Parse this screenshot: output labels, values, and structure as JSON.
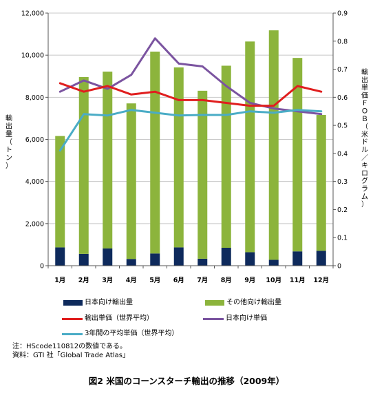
{
  "chart_data": {
    "type": "bar+line",
    "categories": [
      "1月",
      "2月",
      "3月",
      "4月",
      "5月",
      "6月",
      "7月",
      "8月",
      "9月",
      "10月",
      "11月",
      "12月"
    ],
    "left_axis": {
      "label": "輸出量（トン）",
      "ylim": [
        0,
        12000
      ],
      "ticks": [
        "0",
        "2,000",
        "4,000",
        "6,000",
        "8,000",
        "10,000",
        "12,000"
      ]
    },
    "right_axis": {
      "label": "輸出単価ＦＯＢ（米ドル／キログラム）",
      "ylim": [
        0,
        0.9
      ],
      "ticks": [
        "0",
        "0.1",
        "0.2",
        "0.3",
        "0.4",
        "0.5",
        "0.6",
        "0.7",
        "0.8",
        "0.9"
      ]
    },
    "series": [
      {
        "name": "日本向け輸出量",
        "type": "stacked-bar",
        "axis": "left",
        "color": "#0e2a5c",
        "values": [
          870,
          560,
          820,
          320,
          580,
          870,
          330,
          850,
          640,
          280,
          680,
          710
        ]
      },
      {
        "name": "その他向け輸出量",
        "type": "stacked-bar",
        "axis": "left",
        "color": "#8cb43c",
        "values": [
          5290,
          8400,
          8400,
          7390,
          9590,
          8550,
          7980,
          8650,
          10010,
          10900,
          9190,
          6450
        ]
      },
      {
        "name": "輸出単価（世界平均）",
        "type": "line",
        "axis": "right",
        "color": "#e01e1e",
        "values": [
          0.65,
          0.62,
          0.64,
          0.61,
          0.62,
          0.59,
          0.59,
          0.58,
          0.57,
          0.57,
          0.64,
          0.62
        ]
      },
      {
        "name": "日本向け単価",
        "type": "line",
        "axis": "right",
        "color": "#7b54a0",
        "values": [
          0.62,
          0.66,
          0.63,
          0.68,
          0.81,
          0.72,
          0.71,
          0.64,
          0.58,
          0.56,
          0.55,
          0.54
        ]
      },
      {
        "name": "3年間の平均単価（世界平均）",
        "type": "line",
        "axis": "right",
        "color": "#4aacc6",
        "values": [
          0.41,
          0.54,
          0.535,
          0.555,
          0.545,
          0.535,
          0.537,
          0.537,
          0.55,
          0.545,
          0.555,
          0.55
        ]
      }
    ],
    "grid": "horizontal",
    "legend": "bottom"
  },
  "notes": [
    "注：HScode110812の数値である。",
    "資料：GTI 社「Global Trade Atlas」"
  ],
  "caption": "図2  米国のコーンスターチ輸出の推移（2009年）"
}
